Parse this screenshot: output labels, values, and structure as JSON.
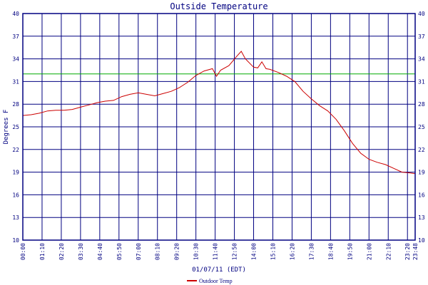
{
  "chart_data": {
    "type": "line",
    "title": "Outside Temperature",
    "xlabel": "01/07/11 (EDT)",
    "ylabel": "Degrees F",
    "ylim": [
      10,
      40
    ],
    "yticks": [
      10,
      13,
      16,
      19,
      22,
      25,
      28,
      31,
      34,
      37,
      40
    ],
    "grid": true,
    "colors": {
      "grid": "#000080",
      "line": "#cc0000",
      "reference": "#00aa00",
      "text": "#000080"
    },
    "reference_line": {
      "y": 32
    },
    "legend_position": "bottom-center",
    "x": [
      "00:00",
      "00:30",
      "01:00",
      "01:30",
      "02:00",
      "02:30",
      "03:00",
      "03:30",
      "04:00",
      "04:30",
      "05:00",
      "05:30",
      "06:00",
      "06:30",
      "07:00",
      "07:30",
      "08:00",
      "08:30",
      "09:00",
      "09:30",
      "10:00",
      "10:30",
      "11:00",
      "11:30",
      "11:45",
      "12:00",
      "12:30",
      "13:00",
      "13:15",
      "13:30",
      "14:00",
      "14:15",
      "14:30",
      "14:45",
      "15:00",
      "15:30",
      "16:00",
      "16:30",
      "17:00",
      "17:30",
      "18:00",
      "18:30",
      "19:00",
      "19:30",
      "20:00",
      "20:30",
      "21:00",
      "21:30",
      "22:00",
      "22:30",
      "23:00",
      "23:30",
      "23:48"
    ],
    "xticks": [
      "00:00",
      "01:10",
      "02:20",
      "03:30",
      "04:40",
      "05:50",
      "07:00",
      "08:10",
      "09:20",
      "10:30",
      "11:40",
      "12:50",
      "14:00",
      "15:10",
      "16:20",
      "17:30",
      "18:40",
      "19:50",
      "21:00",
      "22:10",
      "23:20",
      "23:48"
    ],
    "series": [
      {
        "name": "Outdoor Temp",
        "values": [
          26.5,
          26.6,
          26.8,
          27.1,
          27.2,
          27.2,
          27.3,
          27.6,
          27.9,
          28.2,
          28.4,
          28.5,
          29.0,
          29.3,
          29.5,
          29.3,
          29.1,
          29.4,
          29.7,
          30.2,
          30.9,
          31.8,
          32.4,
          32.7,
          31.7,
          32.5,
          33.1,
          34.4,
          35.0,
          34.0,
          32.9,
          32.8,
          33.6,
          32.7,
          32.6,
          32.2,
          31.7,
          31.0,
          29.7,
          28.7,
          27.8,
          27.1,
          26.0,
          24.5,
          22.8,
          21.5,
          20.7,
          20.3,
          20.0,
          19.5,
          19.0,
          18.9,
          18.8
        ]
      }
    ]
  }
}
